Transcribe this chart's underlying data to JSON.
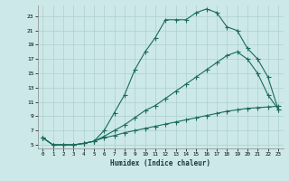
{
  "xlabel": "Humidex (Indice chaleur)",
  "bg_color": "#cce8e8",
  "grid_color": "#afd0d0",
  "line_color": "#1a6b5a",
  "line1_y": [
    6,
    5,
    5,
    5,
    5.2,
    5.5,
    7.0,
    9.5,
    12.0,
    15.5,
    18.0,
    20.0,
    22.5,
    22.5,
    22.5,
    23.5,
    24.0,
    23.5,
    21.5,
    21.0,
    18.5,
    17.0,
    14.5,
    10.0
  ],
  "line2_y": [
    6,
    5,
    5,
    5,
    5.2,
    5.5,
    6.2,
    7.0,
    7.8,
    8.8,
    9.8,
    10.5,
    11.5,
    12.5,
    13.5,
    14.5,
    15.5,
    16.5,
    17.5,
    18.0,
    17.0,
    15.0,
    12.0,
    10.0
  ],
  "line3_y": [
    6,
    5,
    5,
    5,
    5.2,
    5.5,
    6.0,
    6.3,
    6.7,
    7.0,
    7.3,
    7.6,
    7.9,
    8.2,
    8.5,
    8.8,
    9.1,
    9.4,
    9.7,
    9.9,
    10.1,
    10.2,
    10.3,
    10.4
  ],
  "x": [
    0,
    1,
    2,
    3,
    4,
    5,
    6,
    7,
    8,
    9,
    10,
    11,
    12,
    13,
    14,
    15,
    16,
    17,
    18,
    19,
    20,
    21,
    22,
    23
  ],
  "xlim": [
    -0.5,
    23.5
  ],
  "ylim": [
    4.5,
    24.5
  ],
  "yticks": [
    5,
    7,
    9,
    11,
    13,
    15,
    17,
    19,
    21,
    23
  ],
  "xticks": [
    0,
    1,
    2,
    3,
    4,
    5,
    6,
    7,
    8,
    9,
    10,
    11,
    12,
    13,
    14,
    15,
    16,
    17,
    18,
    19,
    20,
    21,
    22,
    23
  ]
}
